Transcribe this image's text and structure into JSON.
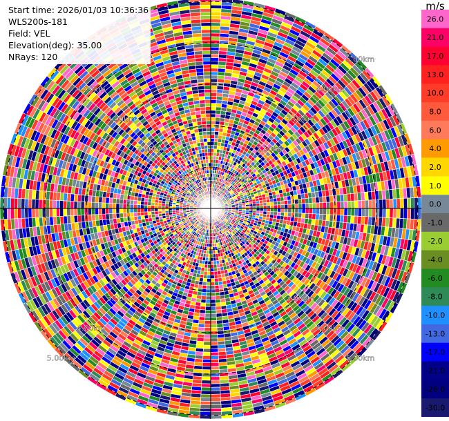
{
  "info": {
    "start_time": "Start time: 2026/01/03 10:36:36",
    "instrument": "WLS200s-181",
    "field": "Field: VEL",
    "elevation": "Elevation(deg): 35.00",
    "nrays": "NRays: 120"
  },
  "chart_data": {
    "type": "heatmap",
    "projection": "polar-ppi",
    "field": "VEL",
    "elevation_deg": 35.0,
    "n_rays": 120,
    "range_km": [
      0,
      5.0
    ],
    "ring_labels_km": [
      "1.00km",
      "2.00km",
      "3.00km",
      "4.00km",
      "5.00km"
    ],
    "ring_labels_km_inner": [
      "1.00km",
      "2.00km",
      "3.00km",
      "4.00km",
      "5.00km"
    ],
    "units": "m/s",
    "colorbar": {
      "ticks": [
        "26.0",
        "21.0",
        "17.0",
        "13.0",
        "10.0",
        "8.0",
        "6.0",
        "4.0",
        "2.0",
        "1.0",
        "0.0",
        "-1.0",
        "-2.0",
        "-4.0",
        "-6.0",
        "-8.0",
        "-10.0",
        "-13.0",
        "-17.0",
        "-21.0",
        "-26.0",
        "-30.0"
      ],
      "colors": [
        "#ff66cc",
        "#ff0066",
        "#ff0033",
        "#ff2020",
        "#ff3c28",
        "#ff5a3c",
        "#ff7a5a",
        "#ff9a00",
        "#ffd700",
        "#ffff00",
        "#778899",
        "#696969",
        "#9acd32",
        "#6b8e23",
        "#228b22",
        "#2e8b57",
        "#1e90ff",
        "#4169e1",
        "#0000ff",
        "#00008b",
        "#000080",
        "#191970"
      ]
    }
  }
}
